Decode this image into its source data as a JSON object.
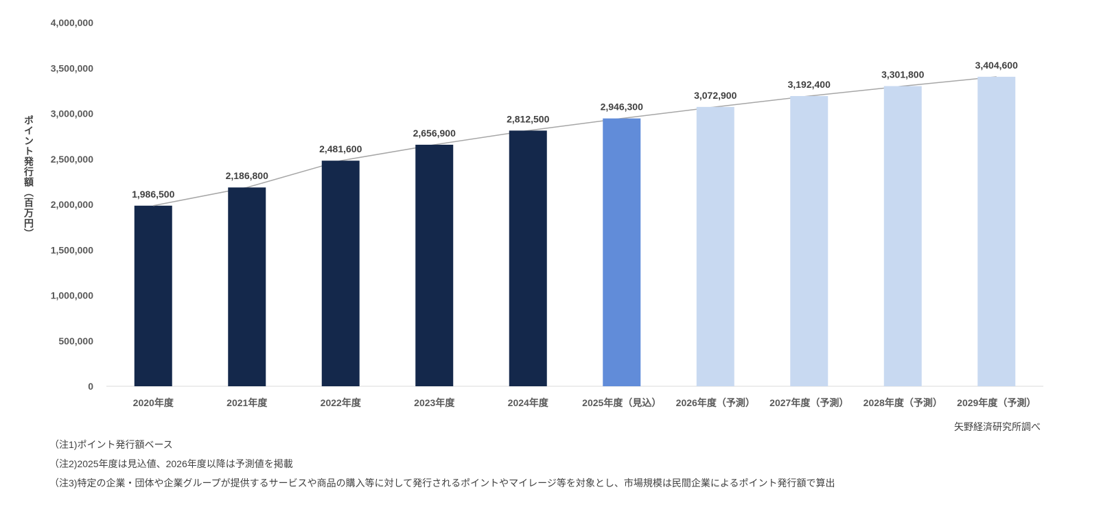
{
  "chart_data": {
    "type": "bar",
    "categories": [
      "2020年度",
      "2021年度",
      "2022年度",
      "2023年度",
      "2024年度",
      "2025年度（見込）",
      "2026年度（予測）",
      "2027年度（予測）",
      "2028年度（予測）",
      "2029年度（予測）"
    ],
    "values": [
      1986500,
      2186800,
      2481600,
      2656900,
      2812500,
      2946300,
      3072900,
      3192400,
      3301800,
      3404600
    ],
    "data_labels": [
      "1,986,500",
      "2,186,800",
      "2,481,600",
      "2,656,900",
      "2,812,500",
      "2,946,300",
      "3,072,900",
      "3,192,400",
      "3,301,800",
      "3,404,600"
    ],
    "bar_kinds": [
      "actual",
      "actual",
      "actual",
      "actual",
      "actual",
      "estimate",
      "forecast",
      "forecast",
      "forecast",
      "forecast"
    ],
    "colors": {
      "actual": "#14284b",
      "estimate": "#618cd9",
      "forecast": "#c8d9f1",
      "line": "#a6a6a6"
    },
    "ylabel": "ポイント発行額（百万円）",
    "ylim": [
      0,
      4000000
    ],
    "yticks": [
      0,
      500000,
      1000000,
      1500000,
      2000000,
      2500000,
      3000000,
      3500000,
      4000000
    ],
    "ytick_labels": [
      "0",
      "500,000",
      "1,000,000",
      "1,500,000",
      "2,000,000",
      "2,500,000",
      "3,000,000",
      "3,500,000",
      "4,000,000"
    ],
    "overlay_line": true,
    "grid": false
  },
  "source": "矢野経済研究所調べ",
  "notes": [
    "（注1)ポイント発行額ベース",
    "（注2)2025年度は見込値、2026年度以降は予測値を掲載",
    "（注3)特定の企業・団体や企業グループが提供するサービスや商品の購入等に対して発行されるポイントやマイレージ等を対象とし、市場規模は民間企業によるポイント発行額で算出"
  ]
}
